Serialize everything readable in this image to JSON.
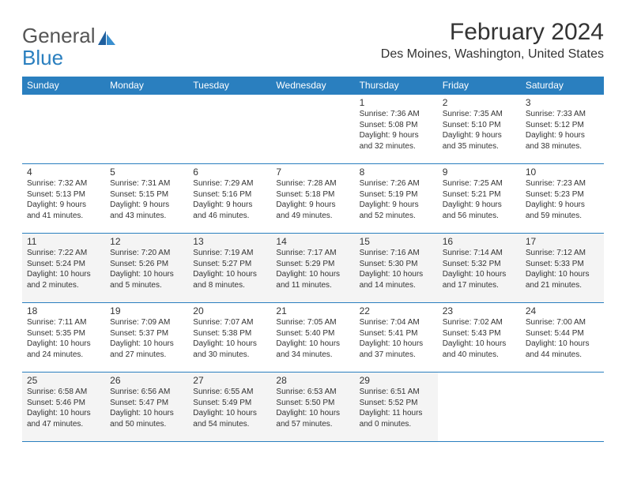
{
  "brand": {
    "part1": "General",
    "part2": "Blue"
  },
  "title": "February 2024",
  "location": "Des Moines, Washington, United States",
  "colors": {
    "header_bg": "#2a7fbf",
    "header_text": "#ffffff",
    "rule": "#2a7fbf",
    "shade_bg": "#f4f4f4",
    "text": "#333333"
  },
  "day_headers": [
    "Sunday",
    "Monday",
    "Tuesday",
    "Wednesday",
    "Thursday",
    "Friday",
    "Saturday"
  ],
  "weeks": [
    [
      {
        "n": "",
        "sr": "",
        "ss": "",
        "dl": ""
      },
      {
        "n": "",
        "sr": "",
        "ss": "",
        "dl": ""
      },
      {
        "n": "",
        "sr": "",
        "ss": "",
        "dl": ""
      },
      {
        "n": "",
        "sr": "",
        "ss": "",
        "dl": ""
      },
      {
        "n": "1",
        "sr": "Sunrise: 7:36 AM",
        "ss": "Sunset: 5:08 PM",
        "dl": "Daylight: 9 hours and 32 minutes."
      },
      {
        "n": "2",
        "sr": "Sunrise: 7:35 AM",
        "ss": "Sunset: 5:10 PM",
        "dl": "Daylight: 9 hours and 35 minutes."
      },
      {
        "n": "3",
        "sr": "Sunrise: 7:33 AM",
        "ss": "Sunset: 5:12 PM",
        "dl": "Daylight: 9 hours and 38 minutes."
      }
    ],
    [
      {
        "n": "4",
        "sr": "Sunrise: 7:32 AM",
        "ss": "Sunset: 5:13 PM",
        "dl": "Daylight: 9 hours and 41 minutes."
      },
      {
        "n": "5",
        "sr": "Sunrise: 7:31 AM",
        "ss": "Sunset: 5:15 PM",
        "dl": "Daylight: 9 hours and 43 minutes."
      },
      {
        "n": "6",
        "sr": "Sunrise: 7:29 AM",
        "ss": "Sunset: 5:16 PM",
        "dl": "Daylight: 9 hours and 46 minutes."
      },
      {
        "n": "7",
        "sr": "Sunrise: 7:28 AM",
        "ss": "Sunset: 5:18 PM",
        "dl": "Daylight: 9 hours and 49 minutes."
      },
      {
        "n": "8",
        "sr": "Sunrise: 7:26 AM",
        "ss": "Sunset: 5:19 PM",
        "dl": "Daylight: 9 hours and 52 minutes."
      },
      {
        "n": "9",
        "sr": "Sunrise: 7:25 AM",
        "ss": "Sunset: 5:21 PM",
        "dl": "Daylight: 9 hours and 56 minutes."
      },
      {
        "n": "10",
        "sr": "Sunrise: 7:23 AM",
        "ss": "Sunset: 5:23 PM",
        "dl": "Daylight: 9 hours and 59 minutes."
      }
    ],
    [
      {
        "n": "11",
        "sr": "Sunrise: 7:22 AM",
        "ss": "Sunset: 5:24 PM",
        "dl": "Daylight: 10 hours and 2 minutes.",
        "shade": true
      },
      {
        "n": "12",
        "sr": "Sunrise: 7:20 AM",
        "ss": "Sunset: 5:26 PM",
        "dl": "Daylight: 10 hours and 5 minutes.",
        "shade": true
      },
      {
        "n": "13",
        "sr": "Sunrise: 7:19 AM",
        "ss": "Sunset: 5:27 PM",
        "dl": "Daylight: 10 hours and 8 minutes.",
        "shade": true
      },
      {
        "n": "14",
        "sr": "Sunrise: 7:17 AM",
        "ss": "Sunset: 5:29 PM",
        "dl": "Daylight: 10 hours and 11 minutes.",
        "shade": true
      },
      {
        "n": "15",
        "sr": "Sunrise: 7:16 AM",
        "ss": "Sunset: 5:30 PM",
        "dl": "Daylight: 10 hours and 14 minutes.",
        "shade": true
      },
      {
        "n": "16",
        "sr": "Sunrise: 7:14 AM",
        "ss": "Sunset: 5:32 PM",
        "dl": "Daylight: 10 hours and 17 minutes.",
        "shade": true
      },
      {
        "n": "17",
        "sr": "Sunrise: 7:12 AM",
        "ss": "Sunset: 5:33 PM",
        "dl": "Daylight: 10 hours and 21 minutes.",
        "shade": true
      }
    ],
    [
      {
        "n": "18",
        "sr": "Sunrise: 7:11 AM",
        "ss": "Sunset: 5:35 PM",
        "dl": "Daylight: 10 hours and 24 minutes."
      },
      {
        "n": "19",
        "sr": "Sunrise: 7:09 AM",
        "ss": "Sunset: 5:37 PM",
        "dl": "Daylight: 10 hours and 27 minutes."
      },
      {
        "n": "20",
        "sr": "Sunrise: 7:07 AM",
        "ss": "Sunset: 5:38 PM",
        "dl": "Daylight: 10 hours and 30 minutes."
      },
      {
        "n": "21",
        "sr": "Sunrise: 7:05 AM",
        "ss": "Sunset: 5:40 PM",
        "dl": "Daylight: 10 hours and 34 minutes."
      },
      {
        "n": "22",
        "sr": "Sunrise: 7:04 AM",
        "ss": "Sunset: 5:41 PM",
        "dl": "Daylight: 10 hours and 37 minutes."
      },
      {
        "n": "23",
        "sr": "Sunrise: 7:02 AM",
        "ss": "Sunset: 5:43 PM",
        "dl": "Daylight: 10 hours and 40 minutes."
      },
      {
        "n": "24",
        "sr": "Sunrise: 7:00 AM",
        "ss": "Sunset: 5:44 PM",
        "dl": "Daylight: 10 hours and 44 minutes."
      }
    ],
    [
      {
        "n": "25",
        "sr": "Sunrise: 6:58 AM",
        "ss": "Sunset: 5:46 PM",
        "dl": "Daylight: 10 hours and 47 minutes.",
        "shade": true
      },
      {
        "n": "26",
        "sr": "Sunrise: 6:56 AM",
        "ss": "Sunset: 5:47 PM",
        "dl": "Daylight: 10 hours and 50 minutes.",
        "shade": true
      },
      {
        "n": "27",
        "sr": "Sunrise: 6:55 AM",
        "ss": "Sunset: 5:49 PM",
        "dl": "Daylight: 10 hours and 54 minutes.",
        "shade": true
      },
      {
        "n": "28",
        "sr": "Sunrise: 6:53 AM",
        "ss": "Sunset: 5:50 PM",
        "dl": "Daylight: 10 hours and 57 minutes.",
        "shade": true
      },
      {
        "n": "29",
        "sr": "Sunrise: 6:51 AM",
        "ss": "Sunset: 5:52 PM",
        "dl": "Daylight: 11 hours and 0 minutes.",
        "shade": true
      },
      {
        "n": "",
        "sr": "",
        "ss": "",
        "dl": ""
      },
      {
        "n": "",
        "sr": "",
        "ss": "",
        "dl": ""
      }
    ]
  ]
}
